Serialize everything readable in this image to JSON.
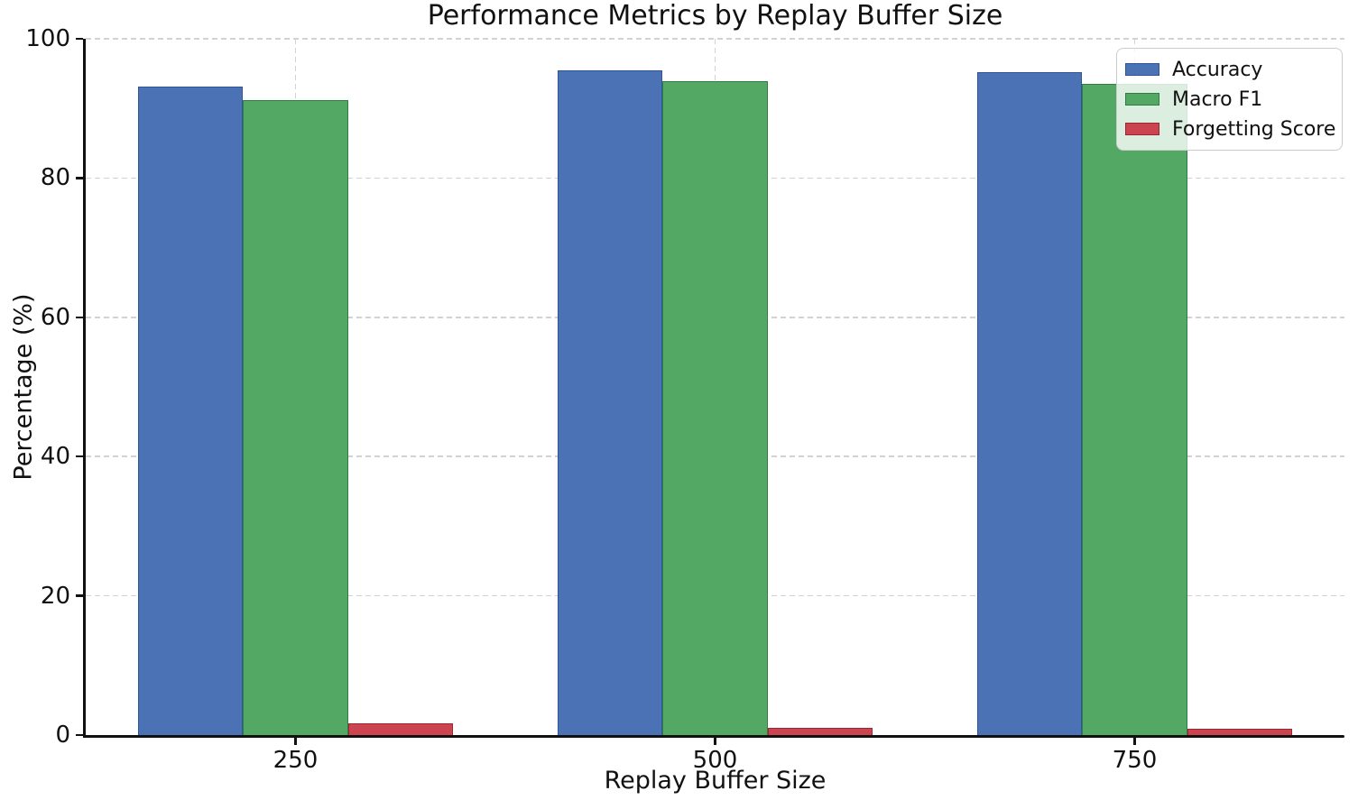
{
  "chart_data": {
    "type": "bar",
    "title": "Performance Metrics by Replay Buffer Size",
    "xlabel": "Replay Buffer Size",
    "ylabel": "Percentage (%)",
    "categories": [
      "250",
      "500",
      "750"
    ],
    "series": [
      {
        "name": "Accuracy",
        "color": "#4a72b5",
        "edge_color": "#2f5597",
        "values": [
          93.1,
          95.5,
          95.2
        ]
      },
      {
        "name": "Macro F1",
        "color": "#53a963",
        "edge_color": "#2e7d44",
        "values": [
          91.2,
          93.9,
          93.5
        ]
      },
      {
        "name": "Forgetting Score",
        "color": "#cb4450",
        "edge_color": "#992732",
        "values": [
          1.7,
          1.0,
          0.9
        ]
      }
    ],
    "ylim": [
      0,
      100
    ],
    "yticks": [
      0,
      20,
      40,
      60,
      80,
      100
    ],
    "grid": true,
    "grid_linestyle": "dashed",
    "legend_position": "upper right",
    "bar_width_fraction": 0.25,
    "text_color": "#111111",
    "grid_color": "#d2d2d2"
  }
}
